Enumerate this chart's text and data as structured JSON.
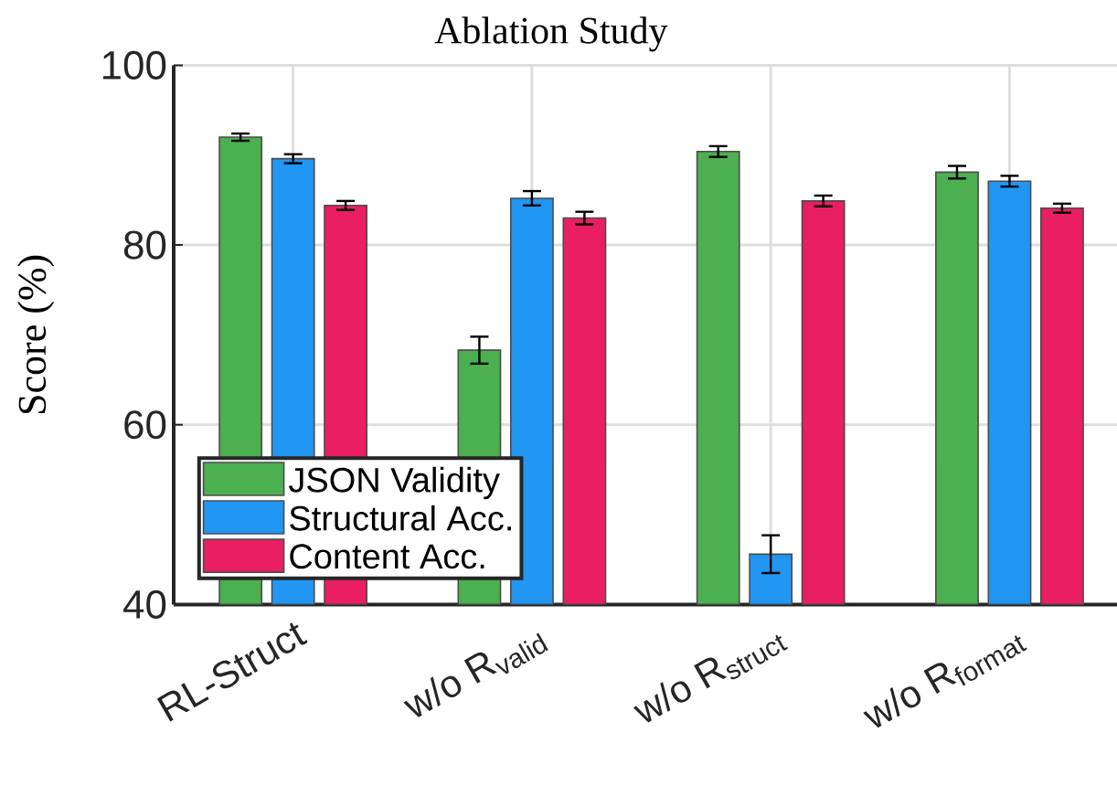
{
  "chart_data": {
    "type": "bar",
    "title": "Ablation Study",
    "ylabel": "Score (%)",
    "categories": [
      "RL-Struct",
      "w/o R$_{valid}$",
      "w/o R$_{struct}$",
      "w/o R$_{format}$"
    ],
    "series": [
      {
        "name": "JSON Validity",
        "color": "#4caf50",
        "values": [
          92.0,
          68.3,
          90.4,
          88.1
        ],
        "errors": [
          0.4,
          1.5,
          0.6,
          0.7
        ]
      },
      {
        "name": "Structural Acc.",
        "color": "#2196f3",
        "values": [
          89.6,
          85.2,
          45.6,
          87.1
        ],
        "errors": [
          0.5,
          0.8,
          2.1,
          0.6
        ]
      },
      {
        "name": "Content Acc.",
        "color": "#e91e63",
        "values": [
          84.4,
          83.0,
          84.9,
          84.1
        ],
        "errors": [
          0.5,
          0.7,
          0.6,
          0.5
        ]
      }
    ],
    "ylim": [
      40,
      100
    ],
    "yticks": [
      40,
      60,
      80,
      100
    ],
    "grid": true,
    "legend": "bottom left"
  }
}
